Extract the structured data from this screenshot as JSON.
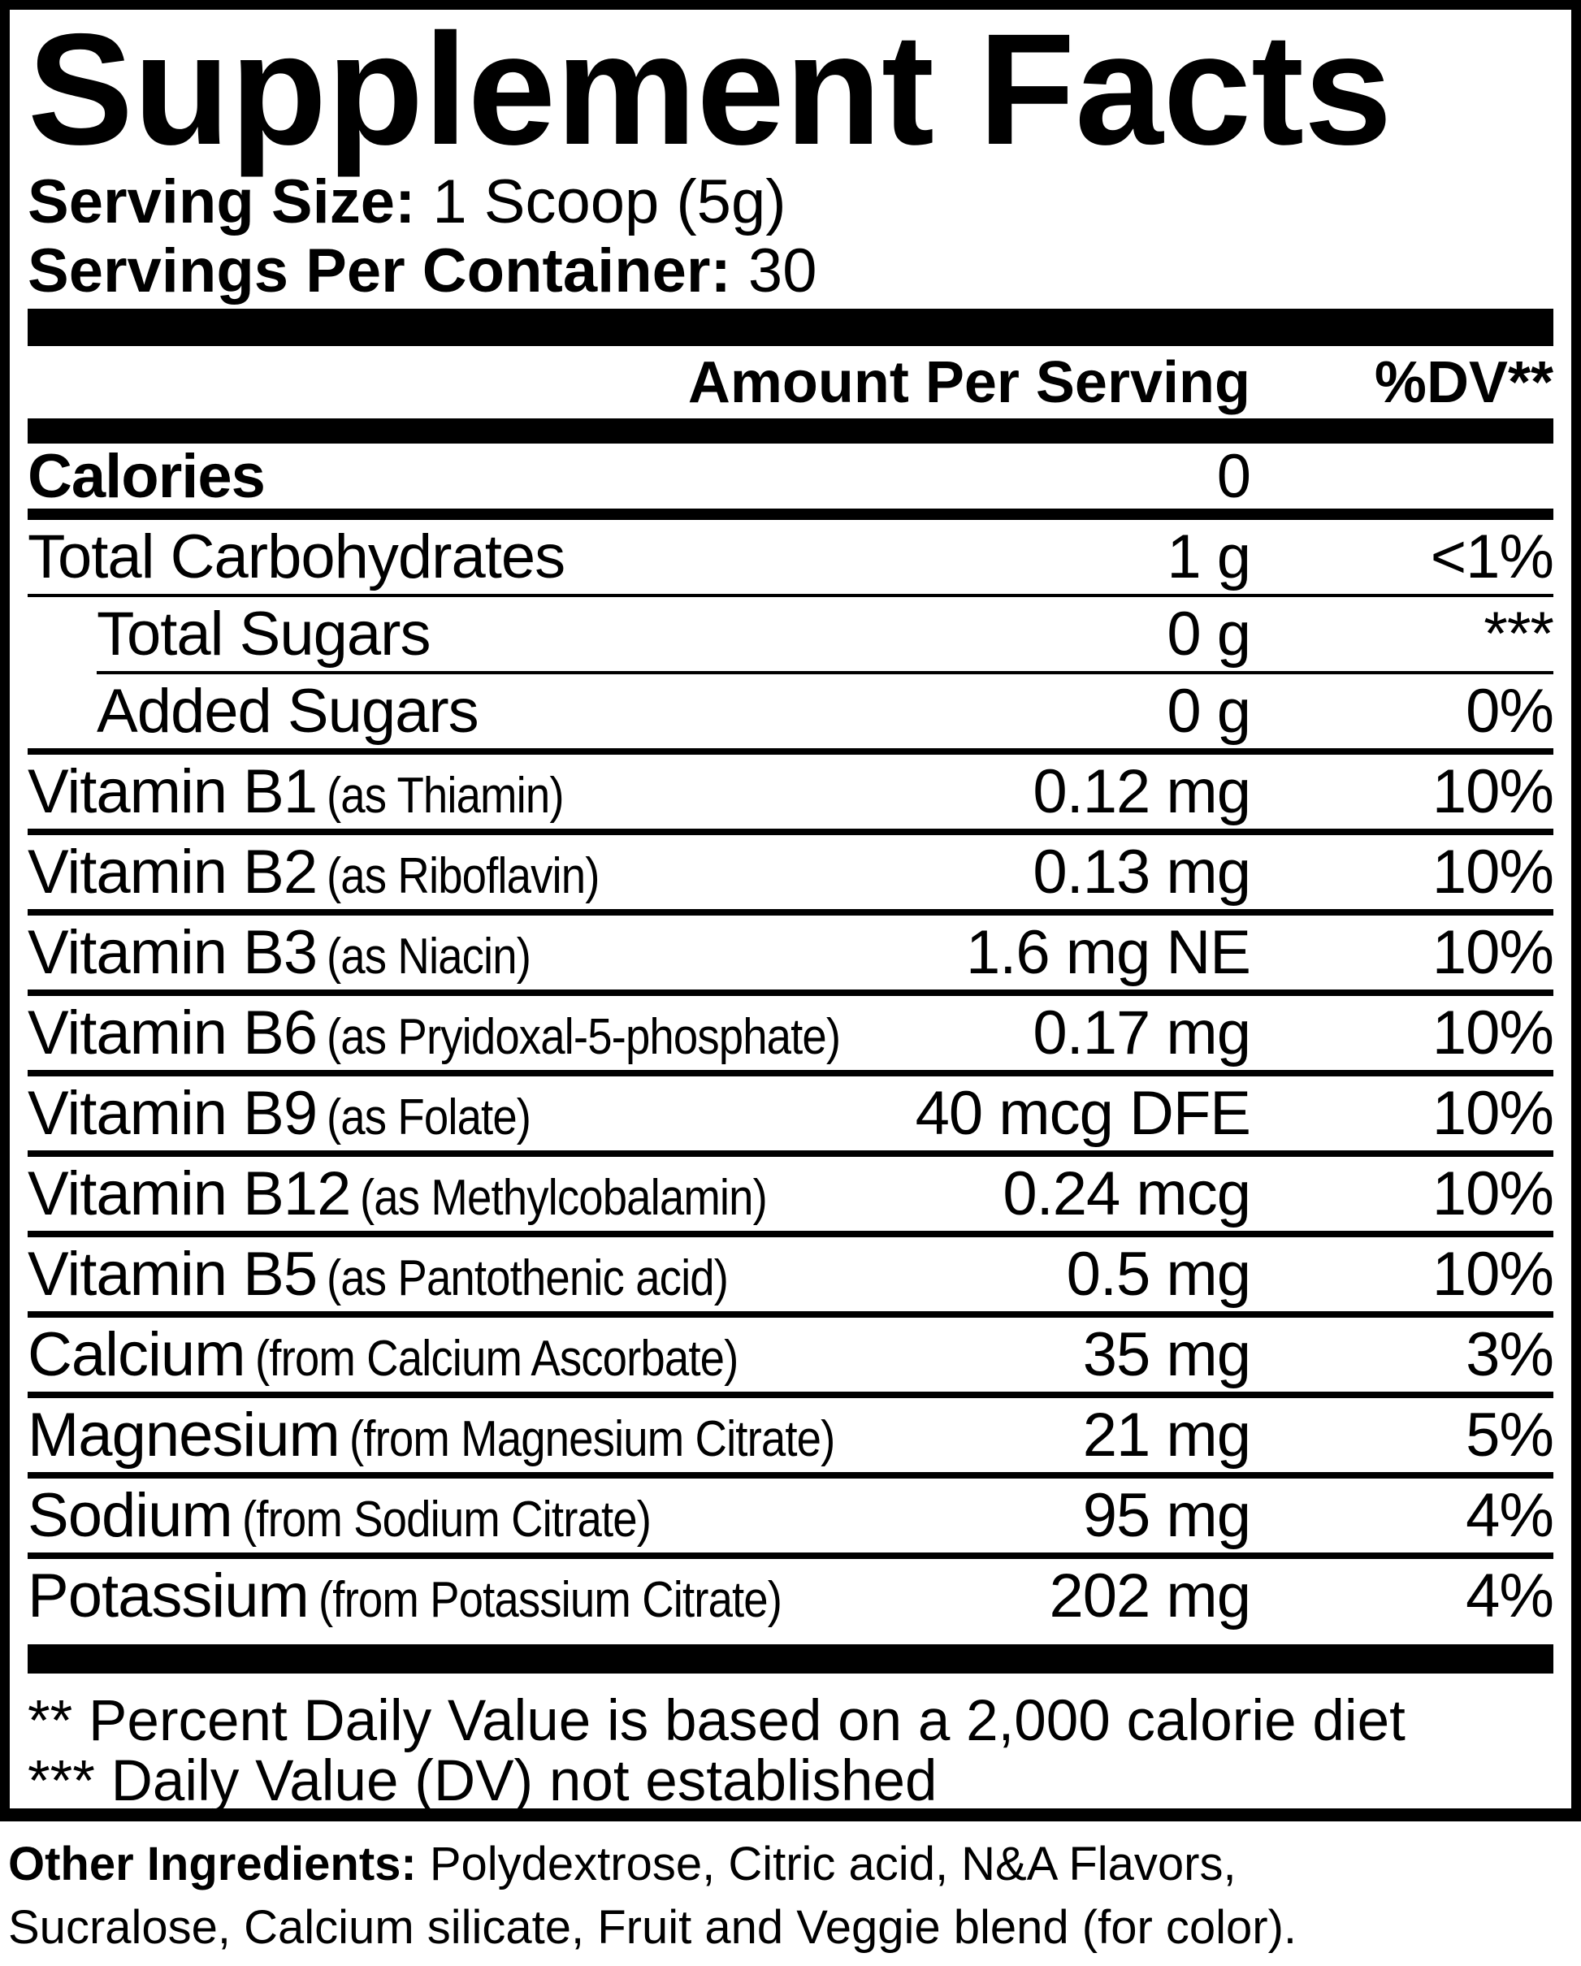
{
  "colors": {
    "background": "#ffffff",
    "text": "#000000"
  },
  "label": {
    "title": "Supplement Facts",
    "serving_size_label": "Serving Size:",
    "serving_size_value": " 1 Scoop (5g)",
    "servings_label": "Servings Per Container:",
    "servings_value": " 30",
    "amount_header": "Amount Per Serving",
    "dv_header": "%DV**",
    "rows": [
      {
        "name": "Calories",
        "sub": "",
        "amount": "0",
        "dv": "",
        "indent": false,
        "bold": true,
        "sep": "med2"
      },
      {
        "name": "Total Carbohydrates",
        "sub": "",
        "amount": "1 g",
        "dv": "<1%",
        "indent": false,
        "bold": false,
        "sep": "thin"
      },
      {
        "name": "Total Sugars",
        "sub": "",
        "amount": "0 g",
        "dv": "***",
        "indent": true,
        "bold": false,
        "sep": "thin-indent"
      },
      {
        "name": "Added Sugars",
        "sub": "",
        "amount": "0 g",
        "dv": "0%",
        "indent": true,
        "bold": false,
        "sep": "med"
      },
      {
        "name": "Vitamin B1",
        "sub": "(as Thiamin)",
        "amount": "0.12 mg",
        "dv": "10%",
        "indent": false,
        "bold": false,
        "sep": "med"
      },
      {
        "name": "Vitamin B2",
        "sub": "(as Riboflavin)",
        "amount": "0.13 mg",
        "dv": "10%",
        "indent": false,
        "bold": false,
        "sep": "med"
      },
      {
        "name": "Vitamin B3",
        "sub": "(as Niacin)",
        "amount": "1.6 mg NE",
        "dv": "10%",
        "indent": false,
        "bold": false,
        "sep": "med"
      },
      {
        "name": "Vitamin B6",
        "sub": "(as Pryidoxal-5-phosphate)",
        "amount": "0.17 mg",
        "dv": "10%",
        "indent": false,
        "bold": false,
        "sep": "med"
      },
      {
        "name": "Vitamin B9",
        "sub": "(as Folate)",
        "amount": "40 mcg DFE",
        "dv": "10%",
        "indent": false,
        "bold": false,
        "sep": "med"
      },
      {
        "name": "Vitamin B12",
        "sub": "(as Methylcobalamin)",
        "amount": "0.24 mcg",
        "dv": "10%",
        "indent": false,
        "bold": false,
        "sep": "med"
      },
      {
        "name": "Vitamin B5",
        "sub": "(as Pantothenic acid)",
        "amount": "0.5 mg",
        "dv": "10%",
        "indent": false,
        "bold": false,
        "sep": "med"
      },
      {
        "name": "Calcium",
        "sub": "(from Calcium Ascorbate)",
        "amount": "35 mg",
        "dv": "3%",
        "indent": false,
        "bold": false,
        "sep": "med"
      },
      {
        "name": "Magnesium",
        "sub": "(from Magnesium Citrate)",
        "amount": "21 mg",
        "dv": "5%",
        "indent": false,
        "bold": false,
        "sep": "med"
      },
      {
        "name": "Sodium",
        "sub": "(from Sodium Citrate)",
        "amount": "95 mg",
        "dv": "4%",
        "indent": false,
        "bold": false,
        "sep": "med"
      },
      {
        "name": "Potassium",
        "sub": "(from Potassium Citrate)",
        "amount": "202 mg",
        "dv": "4%",
        "indent": false,
        "bold": false,
        "sep": "none"
      }
    ],
    "footnote1": "** Percent Daily Value is based on a 2,000 calorie diet",
    "footnote2": "*** Daily Value (DV) not established"
  },
  "footer": {
    "label": "Other Ingredients:",
    "line1_rest": " Polydextrose, Citric acid, N&A Flavors,",
    "line2": "Sucralose, Calcium silicate, Fruit and Veggie blend (for color)."
  }
}
